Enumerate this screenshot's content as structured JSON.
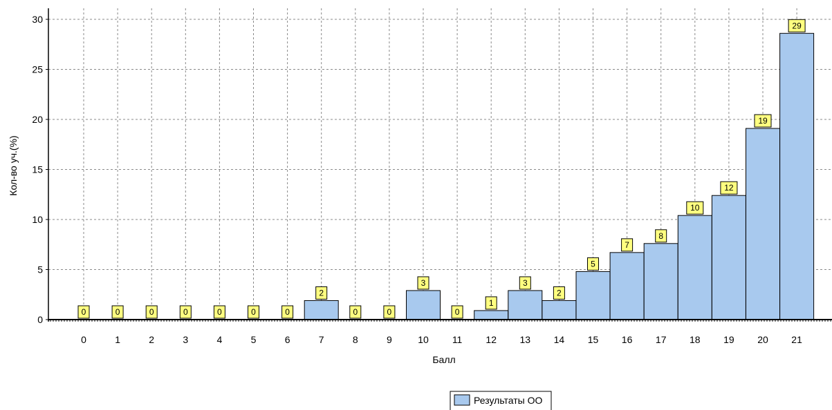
{
  "chart_data": {
    "type": "bar",
    "categories": [
      "0",
      "1",
      "2",
      "3",
      "4",
      "5",
      "6",
      "7",
      "8",
      "9",
      "10",
      "11",
      "12",
      "13",
      "14",
      "15",
      "16",
      "17",
      "18",
      "19",
      "20",
      "21"
    ],
    "series": [
      {
        "name": "Результаты ОО",
        "values": [
          0,
          0,
          0,
          0,
          0,
          0,
          0,
          1.9,
          0,
          0,
          2.9,
          0,
          0.9,
          2.9,
          1.9,
          4.8,
          6.7,
          7.6,
          10.4,
          12.4,
          19.1,
          28.6
        ],
        "labels": [
          "0",
          "0",
          "0",
          "0",
          "0",
          "0",
          "0",
          "2",
          "0",
          "0",
          "3",
          "0",
          "1",
          "3",
          "2",
          "5",
          "7",
          "8",
          "10",
          "12",
          "19",
          "29"
        ]
      }
    ],
    "xlabel": "Балл",
    "ylabel": "Кол-во уч.(%)",
    "ylim": [
      0,
      30
    ],
    "yticks": [
      "0",
      "5",
      "10",
      "15",
      "20",
      "25",
      "30"
    ],
    "grid": true,
    "legend_position": "bottom-center",
    "colors": {
      "bar_fill": "#a8c9ee",
      "bar_stroke": "#000000",
      "label_fill": "#ffff80",
      "grid": "#888888"
    }
  }
}
